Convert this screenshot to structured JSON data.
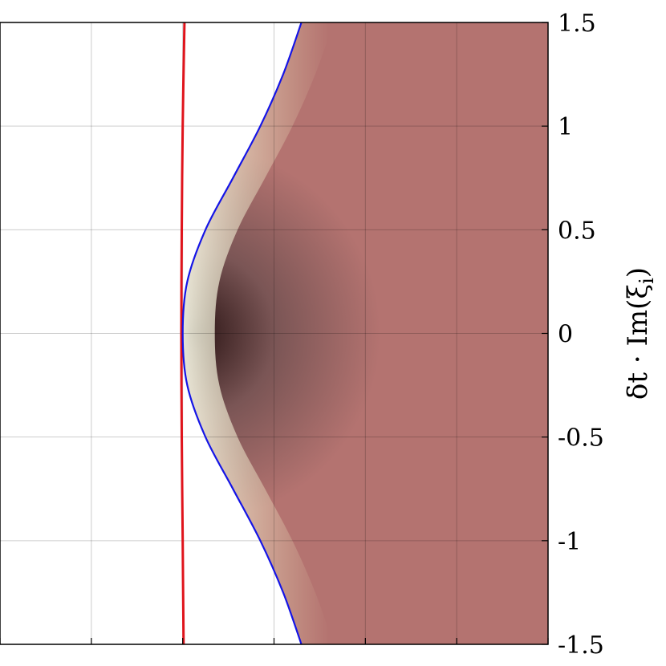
{
  "chart_data": {
    "type": "heatmap",
    "title": "",
    "xlabel": "",
    "ylabel": "δt · Im(ξ_i)",
    "ylabel_parts": {
      "main": "δt · Im(ξ",
      "sub": "i",
      "close": ")"
    },
    "ylabel_position": "right",
    "ylim": [
      -1.5,
      1.5
    ],
    "xlim": [
      0,
      6
    ],
    "grid": true,
    "yticks": [
      1.5,
      1,
      0.5,
      0,
      -0.5,
      -1,
      -1.5
    ],
    "ytick_labels": [
      "1.5",
      "1",
      "0.5",
      "0",
      "-0.5",
      "-1",
      "-1.5"
    ],
    "xticks": [
      0,
      1,
      2,
      3,
      4,
      5,
      6
    ],
    "xtick_labels": [
      "",
      "",
      "",
      "",
      "",
      "",
      ""
    ],
    "colormap": [
      "#fbfbea",
      "#ece5b4",
      "#c8857a",
      "#b47370",
      "#7a5555",
      "#3b2222",
      "#1a0505"
    ],
    "dark_center": {
      "x": 2.1,
      "y": 0
    },
    "curves": [
      {
        "color": "#e0141c",
        "points": [
          [
            2.01,
            -1.5
          ],
          [
            2.0,
            -1.0
          ],
          [
            1.99,
            -0.5
          ],
          [
            1.985,
            0
          ],
          [
            1.99,
            0.5
          ],
          [
            2.0,
            1.0
          ],
          [
            2.02,
            1.5
          ]
        ]
      },
      {
        "color": "#1414e6",
        "points": [
          [
            3.3,
            -1.5
          ],
          [
            3.1,
            -1.25
          ],
          [
            2.85,
            -1.0
          ],
          [
            2.55,
            -0.75
          ],
          [
            2.25,
            -0.5
          ],
          [
            2.05,
            -0.25
          ],
          [
            2.0,
            0
          ],
          [
            2.05,
            0.25
          ],
          [
            2.25,
            0.5
          ],
          [
            2.55,
            0.75
          ],
          [
            2.85,
            1.0
          ],
          [
            3.1,
            1.25
          ],
          [
            3.3,
            1.5
          ]
        ]
      }
    ]
  }
}
